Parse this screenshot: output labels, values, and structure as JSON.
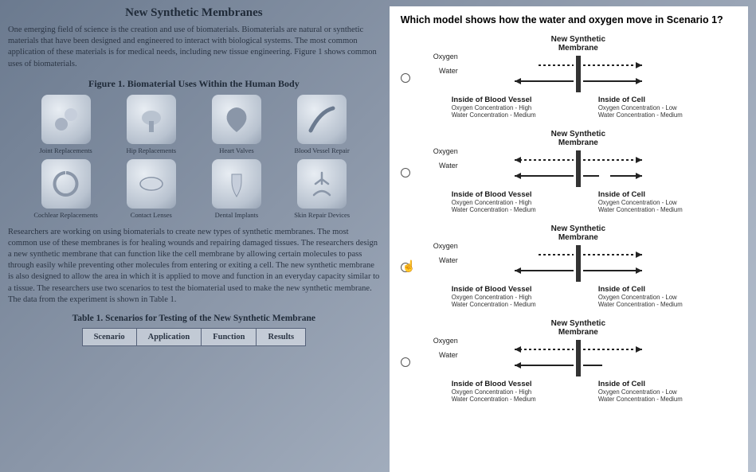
{
  "left": {
    "title": "New Synthetic Membranes",
    "intro": "One emerging field of science is the creation and use of biomaterials. Biomaterials are natural or synthetic materials that have been designed and engineered to interact with biological systems. The most common application of these materials is for medical needs, including new tissue engineering. Figure 1 shows common uses of biomaterials.",
    "figure_caption": "Figure 1. Biomaterial Uses Within the Human Body",
    "icons": [
      {
        "label": "Joint Replacements"
      },
      {
        "label": "Hip Replacements"
      },
      {
        "label": "Heart Valves"
      },
      {
        "label": "Blood Vessel Repair"
      },
      {
        "label": "Cochlear Replacements"
      },
      {
        "label": "Contact Lenses"
      },
      {
        "label": "Dental Implants"
      },
      {
        "label": "Skin Repair Devices"
      }
    ],
    "para2": "Researchers are working on using biomaterials to create new types of synthetic membranes. The most common use of these membranes is for healing wounds and repairing damaged tissues. The researchers design a new synthetic membrane that can function like the cell membrane by allowing certain molecules to pass through easily while preventing other molecules from entering or exiting a cell. The new synthetic membrane is also designed to allow the area in which it is applied to move and function in an everyday capacity similar to a tissue. The researchers use two scenarios to test the biomaterial used to make the new synthetic membrane. The data from the experiment is shown in Table 1.",
    "table_caption": "Table 1. Scenarios for Testing of the New Synthetic Membrane",
    "table_headers": [
      "Scenario",
      "Application",
      "Function",
      "Results"
    ]
  },
  "right": {
    "question": "Which model shows how the water and oxygen move in Scenario 1?",
    "row_label_o": "Oxygen",
    "row_label_w": "Water",
    "dia_title_l1": "New Synthetic",
    "dia_title_l2": "Membrane",
    "left_head": "Inside of Blood Vessel",
    "right_head": "Inside of Cell",
    "left_line1": "Oxygen Concentration - High",
    "left_line2": "Water Concentration - Medium",
    "right_line1": "Oxygen Concentration - Low",
    "right_line2": "Water Concentration - Medium",
    "options": [
      {
        "oxygen": "right-dotted",
        "water": "both-solid"
      },
      {
        "oxygen": "both-dotted",
        "water": "both-dash"
      },
      {
        "oxygen": "right-dotted",
        "water": "both-solid",
        "cursor": true
      },
      {
        "oxygen": "both-dotted",
        "water": "left-solid"
      }
    ],
    "colors": {
      "membrane": "#333333",
      "arrow": "#222222",
      "bg": "#ffffff"
    }
  }
}
